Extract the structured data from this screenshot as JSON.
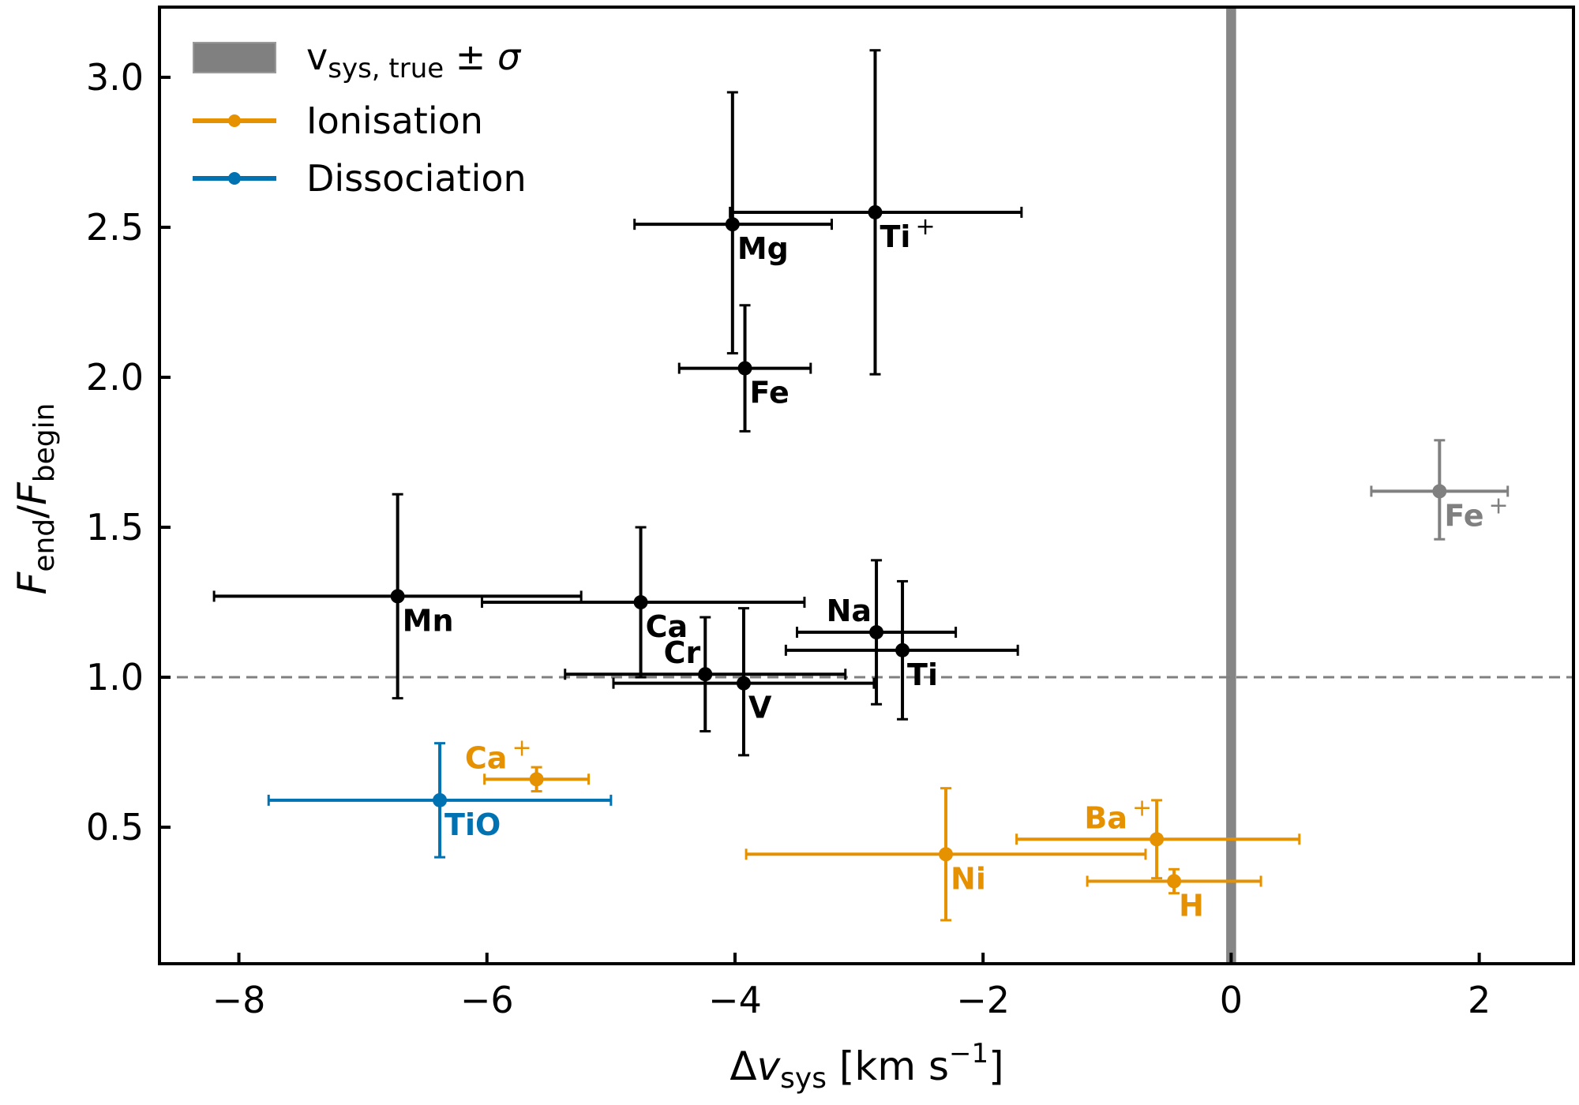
{
  "chart_data": {
    "type": "scatter",
    "title": "",
    "xlabel": {
      "main": "Δ",
      "var": "v",
      "sub": "sys",
      "unit": " [km s",
      "sup": "−1",
      "close": "]"
    },
    "ylabel": {
      "num": "F",
      "num_sub": "end",
      "slash": "/",
      "den": "F",
      "den_sub": "begin"
    },
    "xlim": [
      -8.64,
      2.76
    ],
    "ylim": [
      0.045,
      3.234
    ],
    "xticks": [
      -8,
      -6,
      -4,
      -2,
      0,
      2
    ],
    "xtick_labels": [
      "−8",
      "−6",
      "−4",
      "−2",
      "0",
      "2"
    ],
    "yticks": [
      0.5,
      1.0,
      1.5,
      2.0,
      2.5,
      3.0
    ],
    "ytick_labels": [
      "0.5",
      "1.0",
      "1.5",
      "2.0",
      "2.5",
      "3.0"
    ],
    "grid": false,
    "reference_lines": {
      "horizontal_dashed_y": 1.0,
      "vertical_band": {
        "center": 0.0,
        "halfwidth": 0.04,
        "color": "#808080"
      }
    },
    "legend": {
      "placement": "top-left",
      "entries": [
        {
          "type": "band",
          "label_main": "v",
          "label_sub": "sys, true",
          "label_rest": " ± ",
          "label_sigma": "σ",
          "color": "#808080"
        },
        {
          "type": "errorbar",
          "label": "Ionisation",
          "color": "#E69100"
        },
        {
          "type": "errorbar",
          "label": "Dissociation",
          "color": "#0072B2"
        }
      ]
    },
    "colors": {
      "neutral": "#000000",
      "ionisation": "#E69100",
      "dissociation": "#0072B2",
      "excluded": "#808080",
      "dashed": "#808080"
    },
    "points": [
      {
        "name": "Mg",
        "sup": "",
        "group": "neutral",
        "x": -4.02,
        "y": 2.51,
        "xlo": -4.81,
        "xhi": -3.22,
        "ylo": 2.08,
        "yhi": 2.95,
        "label_pos": "below-right"
      },
      {
        "name": "Ti",
        "sup": "+",
        "group": "neutral",
        "x": -2.87,
        "y": 2.55,
        "xlo": -4.04,
        "xhi": -1.69,
        "ylo": 2.01,
        "yhi": 3.09,
        "label_pos": "below-right"
      },
      {
        "name": "Fe",
        "sup": "",
        "group": "neutral",
        "x": -3.92,
        "y": 2.03,
        "xlo": -4.45,
        "xhi": -3.39,
        "ylo": 1.82,
        "yhi": 2.24,
        "label_pos": "below-right"
      },
      {
        "name": "Mn",
        "sup": "",
        "group": "neutral",
        "x": -6.72,
        "y": 1.27,
        "xlo": -8.2,
        "xhi": -5.24,
        "ylo": 0.93,
        "yhi": 1.61,
        "label_pos": "below-right"
      },
      {
        "name": "Ca",
        "sup": "",
        "group": "neutral",
        "x": -4.76,
        "y": 1.25,
        "xlo": -6.04,
        "xhi": -3.44,
        "ylo": 1.0,
        "yhi": 1.5,
        "label_pos": "below-right"
      },
      {
        "name": "Cr",
        "sup": "",
        "group": "neutral",
        "x": -4.24,
        "y": 1.01,
        "xlo": -5.37,
        "xhi": -3.11,
        "ylo": 0.82,
        "yhi": 1.2,
        "label_pos": "above-left"
      },
      {
        "name": "V",
        "sup": "",
        "group": "neutral",
        "x": -3.93,
        "y": 0.98,
        "xlo": -4.98,
        "xhi": -2.88,
        "ylo": 0.74,
        "yhi": 1.23,
        "label_pos": "below-right"
      },
      {
        "name": "Na",
        "sup": "",
        "group": "neutral",
        "x": -2.86,
        "y": 1.15,
        "xlo": -3.5,
        "xhi": -2.22,
        "ylo": 0.91,
        "yhi": 1.39,
        "label_pos": "above-left"
      },
      {
        "name": "Ti",
        "sup": "",
        "group": "neutral",
        "x": -2.65,
        "y": 1.09,
        "xlo": -3.59,
        "xhi": -1.72,
        "ylo": 0.86,
        "yhi": 1.32,
        "label_pos": "below-right"
      },
      {
        "name": "Fe",
        "sup": "+",
        "group": "excluded",
        "x": 1.68,
        "y": 1.62,
        "xlo": 1.13,
        "xhi": 2.23,
        "ylo": 1.46,
        "yhi": 1.79,
        "label_pos": "below-right"
      },
      {
        "name": "TiO",
        "sup": "",
        "group": "dissociation",
        "x": -6.38,
        "y": 0.59,
        "xlo": -7.76,
        "xhi": -5.0,
        "ylo": 0.4,
        "yhi": 0.78,
        "label_pos": "below-right"
      },
      {
        "name": "Ca",
        "sup": "+",
        "group": "ionisation",
        "x": -5.6,
        "y": 0.66,
        "xlo": -6.02,
        "xhi": -5.18,
        "ylo": 0.62,
        "yhi": 0.7,
        "label_pos": "above-left"
      },
      {
        "name": "Ni",
        "sup": "",
        "group": "ionisation",
        "x": -2.3,
        "y": 0.41,
        "xlo": -3.91,
        "xhi": -0.69,
        "ylo": 0.19,
        "yhi": 0.63,
        "label_pos": "below-right"
      },
      {
        "name": "Ba",
        "sup": "+",
        "group": "ionisation",
        "x": -0.6,
        "y": 0.46,
        "xlo": -1.73,
        "xhi": 0.55,
        "ylo": 0.33,
        "yhi": 0.59,
        "label_pos": "above-left"
      },
      {
        "name": "H",
        "sup": "",
        "group": "ionisation",
        "x": -0.46,
        "y": 0.32,
        "xlo": -1.16,
        "xhi": 0.24,
        "ylo": 0.28,
        "yhi": 0.36,
        "label_pos": "below-right"
      }
    ]
  }
}
